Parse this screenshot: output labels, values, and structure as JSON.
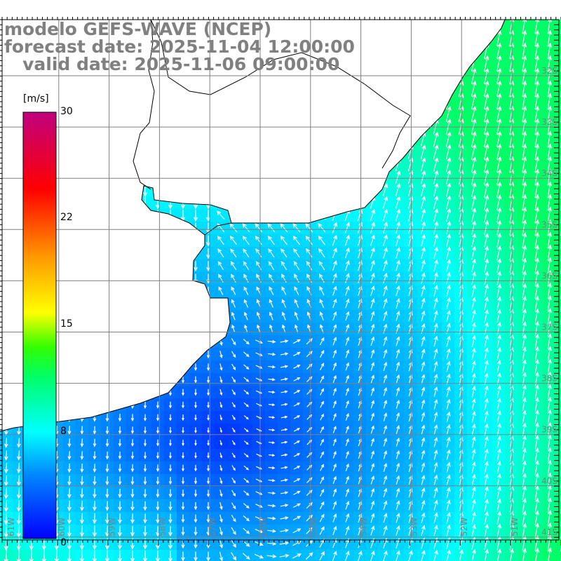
{
  "title": {
    "model": "modelo GEFS-WAVE (NCEP)",
    "forecast": "forecast date: 2025-11-04 12:00:00",
    "valid": "   valid date: 2025-11-06 09:00:00"
  },
  "colorbar": {
    "unit": "[m/s]",
    "ticks": [
      "30",
      "22",
      "15",
      "8",
      "0"
    ],
    "tick_values": [
      30,
      22,
      15,
      8,
      0
    ]
  },
  "axes": {
    "lon_labels": [
      "61W",
      "60W",
      "59W",
      "58W",
      "57W",
      "56W",
      "55W",
      "54W",
      "53W",
      "52W",
      "51W"
    ],
    "lat_labels": [
      "32S",
      "33S",
      "34S",
      "35S",
      "36S",
      "37S",
      "38S",
      "39S",
      "40S",
      "41S"
    ]
  },
  "colors": {
    "grid": "#808080",
    "land": "#ffffff",
    "coast": "#000000",
    "arrow": "#ffffff"
  }
}
